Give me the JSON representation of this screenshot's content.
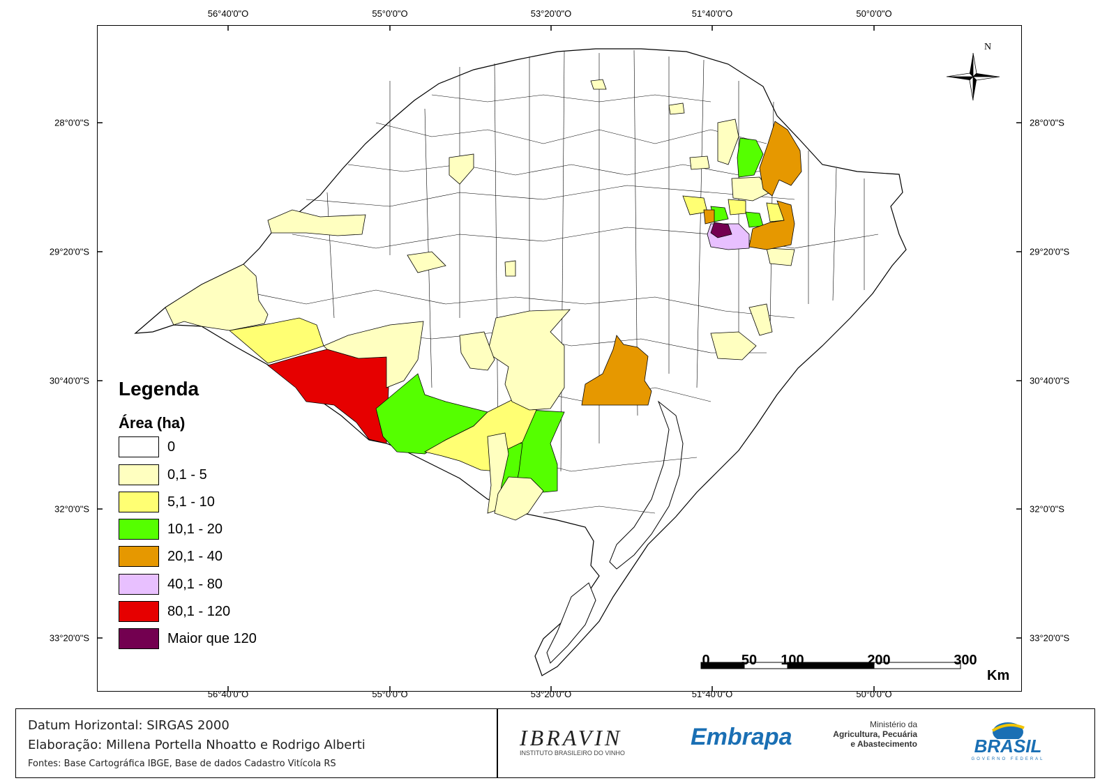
{
  "coords": {
    "top": [
      "56°40'0\"O",
      "55°0'0\"O",
      "53°20'0\"O",
      "51°40'0\"O",
      "50°0'0\"O"
    ],
    "bottom": [
      "56°40'0\"O",
      "55°0'0\"O",
      "53°20'0\"O",
      "51°40'0\"O",
      "50°0'0\"O"
    ],
    "left": [
      "28°0'0\"S",
      "29°20'0\"S",
      "30°40'0\"S",
      "32°0'0\"S",
      "33°20'0\"S"
    ],
    "right": [
      "28°0'0\"S",
      "29°20'0\"S",
      "30°40'0\"S",
      "32°0'0\"S",
      "33°20'0\"S"
    ]
  },
  "north": "N",
  "legend": {
    "title": "Legenda",
    "subtitle": "Área (ha)",
    "classes": [
      {
        "label": "0",
        "color": "#ffffff"
      },
      {
        "label": "0,1 - 5",
        "color": "#ffffc0"
      },
      {
        "label": "5,1 - 10",
        "color": "#ffff73"
      },
      {
        "label": "10,1 - 20",
        "color": "#55ff00"
      },
      {
        "label": "20,1 - 40",
        "color": "#e69800"
      },
      {
        "label": "40,1 - 80",
        "color": "#e8c0ff"
      },
      {
        "label": "80,1 - 120",
        "color": "#e60000"
      },
      {
        "label": "Maior que 120",
        "color": "#730050"
      }
    ]
  },
  "scale": {
    "labels": [
      "0",
      "50",
      "100",
      "200",
      "300"
    ],
    "unit": "Km"
  },
  "footer": {
    "datum": "Datum Horizontal: SIRGAS 2000",
    "elaboracao": "Elaboração: Millena Portella Nhoatto e Rodrigo Alberti",
    "fontes": "Fontes: Base Cartográfica IBGE, Base de dados Cadastro Vitícola RS"
  },
  "logos": {
    "ibravin": "IBRAVIN",
    "ibravin_sub": "INSTITUTO BRASILEIRO DO VINHO",
    "embrapa": "Embrapa",
    "ministerio": [
      "Ministério da",
      "Agricultura, Pecuária",
      "e Abastecimento"
    ],
    "brasil": "BRASIL",
    "brasil_sub": "GOVERNO FEDERAL"
  }
}
